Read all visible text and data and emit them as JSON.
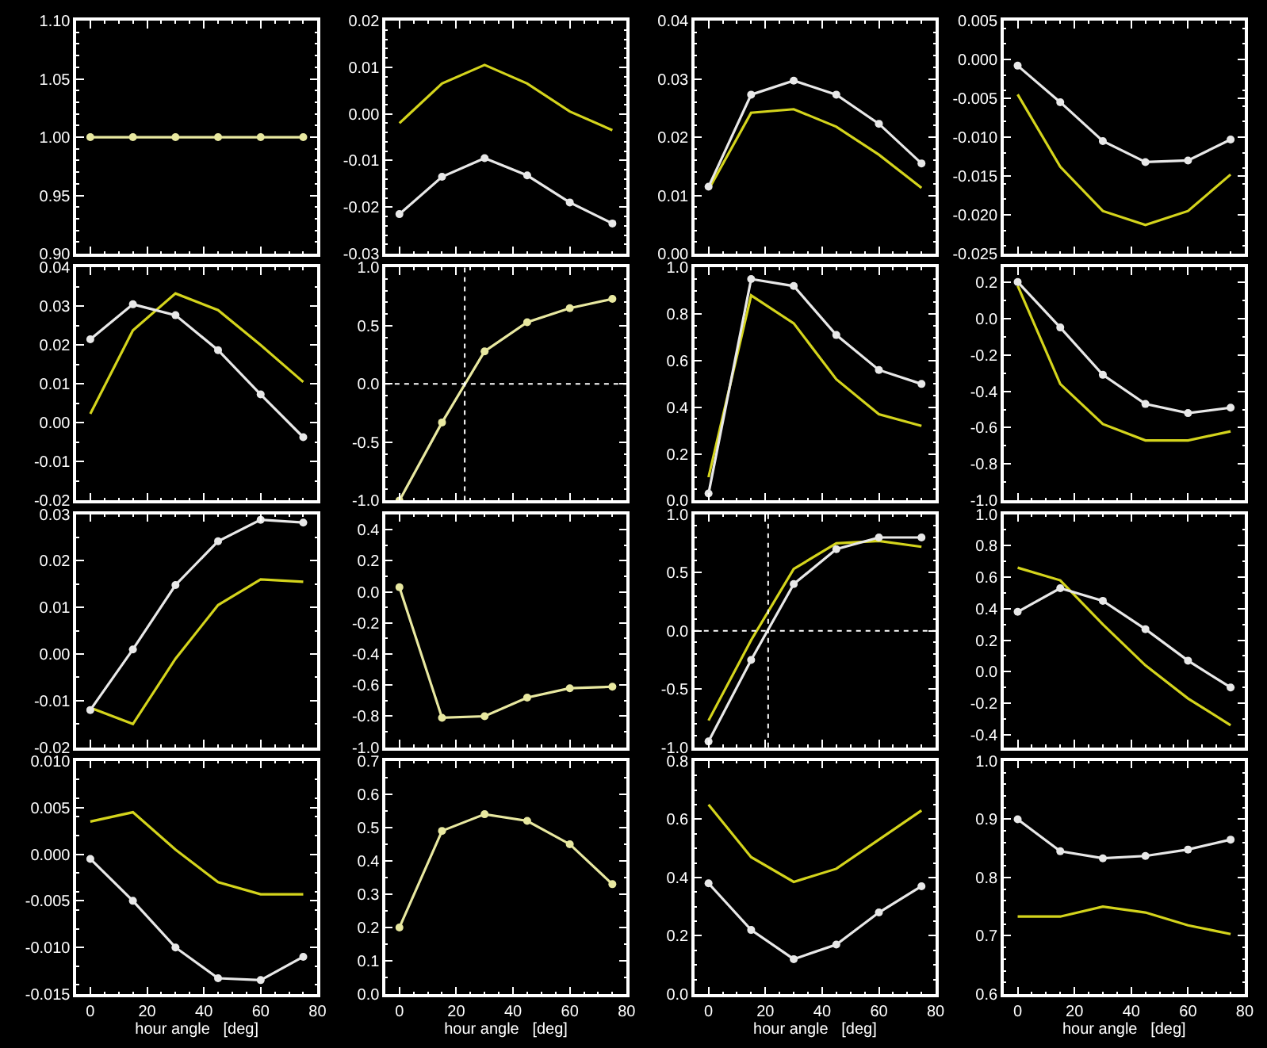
{
  "chart_data": [
    {
      "type": "line",
      "x": [
        0,
        15,
        30,
        45,
        60,
        75
      ],
      "xlim": [
        -5,
        80
      ],
      "xticks": [
        0,
        20,
        40,
        60,
        80
      ],
      "tick_labels": "y",
      "ylim": [
        0.9,
        1.1
      ],
      "yticks": [
        {
          "value": 0.9,
          "label": "0.90"
        },
        {
          "value": 0.95,
          "label": "0.95"
        },
        {
          "value": 1.0,
          "label": "1.00"
        },
        {
          "value": 1.05,
          "label": "1.05"
        },
        {
          "value": 1.1,
          "label": "1.10"
        }
      ],
      "series": [
        {
          "color": "#e8e8a0",
          "marker": "circle",
          "values": [
            1.0,
            1.0,
            1.0,
            1.0,
            1.0,
            1.0
          ]
        }
      ]
    },
    {
      "type": "line",
      "x": [
        0,
        15,
        30,
        45,
        60,
        75
      ],
      "xlim": [
        -5,
        80
      ],
      "xticks": [
        0,
        20,
        40,
        60,
        80
      ],
      "tick_labels": "y",
      "ylim": [
        -0.03,
        0.02
      ],
      "yticks": [
        -0.03,
        -0.02,
        -0.01,
        {
          "value": 0,
          "label": "0.00"
        },
        0.01,
        0.02
      ],
      "series": [
        {
          "color": "#d4d41c",
          "values": [
            -0.002,
            0.0065,
            0.0105,
            0.0065,
            0.0005,
            -0.0035
          ]
        },
        {
          "color": "#e8e8e8",
          "marker": "circle",
          "values": [
            -0.0215,
            -0.0135,
            -0.0095,
            -0.0132,
            -0.019,
            -0.0235
          ]
        }
      ]
    },
    {
      "type": "line",
      "x": [
        0,
        15,
        30,
        45,
        60,
        75
      ],
      "xlim": [
        -5,
        80
      ],
      "xticks": [
        0,
        20,
        40,
        60,
        80
      ],
      "tick_labels": "y",
      "ylim": [
        0,
        0.04
      ],
      "yticks": [
        {
          "value": 0,
          "label": "0.00"
        },
        0.01,
        0.02,
        0.03,
        0.04
      ],
      "series": [
        {
          "color": "#d4d41c",
          "values": [
            0.011,
            0.0242,
            0.0248,
            0.0218,
            0.017,
            0.0113
          ]
        },
        {
          "color": "#e8e8e8",
          "marker": "circle",
          "values": [
            0.0115,
            0.0273,
            0.0297,
            0.0273,
            0.0223,
            0.0155
          ]
        }
      ]
    },
    {
      "type": "line",
      "x": [
        0,
        15,
        30,
        45,
        60,
        75
      ],
      "xlim": [
        -5,
        80
      ],
      "xticks": [
        0,
        20,
        40,
        60,
        80
      ],
      "tick_labels": "y",
      "ylim": [
        -0.025,
        0.005
      ],
      "yticks": [
        -0.025,
        {
          "value": -0.02,
          "label": "-0.020"
        },
        -0.015,
        {
          "value": -0.01,
          "label": "-0.010"
        },
        -0.005,
        {
          "value": 0,
          "label": "0.000"
        },
        0.005
      ],
      "series": [
        {
          "color": "#d4d41c",
          "values": [
            -0.0045,
            -0.0138,
            -0.0195,
            -0.0213,
            -0.0195,
            -0.0148
          ]
        },
        {
          "color": "#e8e8e8",
          "marker": "circle",
          "values": [
            -0.0008,
            -0.0055,
            -0.0105,
            -0.0132,
            -0.013,
            -0.0103
          ]
        }
      ]
    },
    {
      "type": "line",
      "x": [
        0,
        15,
        30,
        45,
        60,
        75
      ],
      "xlim": [
        -5,
        80
      ],
      "xticks": [
        0,
        20,
        40,
        60,
        80
      ],
      "tick_labels": "y",
      "ylim": [
        -0.02,
        0.04
      ],
      "yticks": [
        -0.02,
        -0.01,
        {
          "value": 0,
          "label": "0.00"
        },
        0.01,
        0.02,
        0.03,
        0.04
      ],
      "series": [
        {
          "color": "#d4d41c",
          "values": [
            0.0023,
            0.0238,
            0.0333,
            0.029,
            0.02,
            0.0105
          ]
        },
        {
          "color": "#e8e8e8",
          "marker": "circle",
          "values": [
            0.0215,
            0.0305,
            0.0277,
            0.0187,
            0.0073,
            -0.0037
          ]
        }
      ]
    },
    {
      "type": "line",
      "x": [
        0,
        15,
        30,
        45,
        60,
        75
      ],
      "xlim": [
        -5,
        80
      ],
      "xticks": [
        0,
        20,
        40,
        60,
        80
      ],
      "tick_labels": "y",
      "ylim": [
        -1,
        1
      ],
      "yticks": [
        {
          "value": -1,
          "label": "-1.0"
        },
        -0.5,
        {
          "value": 0,
          "label": "0.0"
        },
        0.5,
        {
          "value": 1,
          "label": "1.0"
        }
      ],
      "ref_lines": [
        {
          "axis": "x",
          "value": 23,
          "line_style": "dotted"
        },
        {
          "axis": "y",
          "value": 0,
          "line_style": "dotted"
        }
      ],
      "series": [
        {
          "color": "#e8e8a0",
          "marker": "circle",
          "values": [
            -1.0,
            -0.33,
            0.28,
            0.53,
            0.65,
            0.73
          ]
        }
      ]
    },
    {
      "type": "line",
      "x": [
        0,
        15,
        30,
        45,
        60,
        75
      ],
      "xlim": [
        -5,
        80
      ],
      "xticks": [
        0,
        20,
        40,
        60,
        80
      ],
      "tick_labels": "y",
      "ylim": [
        0,
        1
      ],
      "yticks": [
        {
          "value": 0,
          "label": "0.0"
        },
        0.2,
        0.4,
        0.6,
        0.8,
        {
          "value": 1,
          "label": "1.0"
        }
      ],
      "series": [
        {
          "color": "#d4d41c",
          "values": [
            0.1,
            0.88,
            0.76,
            0.52,
            0.37,
            0.32
          ]
        },
        {
          "color": "#e8e8e8",
          "marker": "circle",
          "values": [
            0.03,
            0.95,
            0.92,
            0.71,
            0.56,
            0.5
          ]
        }
      ]
    },
    {
      "type": "line",
      "x": [
        0,
        15,
        30,
        45,
        60,
        75
      ],
      "xlim": [
        -5,
        80
      ],
      "xticks": [
        0,
        20,
        40,
        60,
        80
      ],
      "tick_labels": "y",
      "ylim": [
        -1,
        0.28
      ],
      "yticks": [
        {
          "value": -1,
          "label": "-1.0"
        },
        -0.8,
        -0.6,
        -0.4,
        -0.2,
        {
          "value": 0,
          "label": "0.0"
        },
        0.2
      ],
      "series": [
        {
          "color": "#d4d41c",
          "values": [
            0.18,
            -0.36,
            -0.58,
            -0.67,
            -0.67,
            -0.62
          ]
        },
        {
          "color": "#e8e8e8",
          "marker": "circle",
          "values": [
            0.2,
            -0.05,
            -0.31,
            -0.47,
            -0.52,
            -0.49
          ]
        }
      ]
    },
    {
      "type": "line",
      "x": [
        0,
        15,
        30,
        45,
        60,
        75
      ],
      "xlim": [
        -5,
        80
      ],
      "xticks": [
        0,
        20,
        40,
        60,
        80
      ],
      "tick_labels": "y",
      "ylim": [
        -0.02,
        0.03
      ],
      "yticks": [
        -0.02,
        -0.01,
        {
          "value": 0,
          "label": "0.00"
        },
        0.01,
        0.02,
        0.03
      ],
      "series": [
        {
          "color": "#d4d41c",
          "values": [
            -0.0115,
            -0.015,
            -0.001,
            0.0105,
            0.016,
            0.0155
          ]
        },
        {
          "color": "#e8e8e8",
          "marker": "circle",
          "values": [
            -0.012,
            0.001,
            0.0148,
            0.0242,
            0.0288,
            0.0282
          ]
        }
      ]
    },
    {
      "type": "line",
      "x": [
        0,
        15,
        30,
        45,
        60,
        75
      ],
      "xlim": [
        -5,
        80
      ],
      "xticks": [
        0,
        20,
        40,
        60,
        80
      ],
      "tick_labels": "y",
      "ylim": [
        -1,
        0.5
      ],
      "yticks": [
        {
          "value": -1,
          "label": "-1.0"
        },
        -0.8,
        -0.6,
        -0.4,
        -0.2,
        {
          "value": 0,
          "label": "0.0"
        },
        0.2,
        0.4
      ],
      "series": [
        {
          "color": "#e8e8a0",
          "marker": "circle",
          "values": [
            0.03,
            -0.81,
            -0.8,
            -0.68,
            -0.62,
            -0.61
          ]
        }
      ]
    },
    {
      "type": "line",
      "x": [
        0,
        15,
        30,
        45,
        60,
        75
      ],
      "xlim": [
        -5,
        80
      ],
      "xticks": [
        0,
        20,
        40,
        60,
        80
      ],
      "tick_labels": "y",
      "ylim": [
        -1,
        1
      ],
      "yticks": [
        {
          "value": -1,
          "label": "-1.0"
        },
        -0.5,
        {
          "value": 0,
          "label": "0.0"
        },
        0.5,
        {
          "value": 1,
          "label": "1.0"
        }
      ],
      "ref_lines": [
        {
          "axis": "x",
          "value": 21,
          "line_style": "dotted"
        },
        {
          "axis": "y",
          "value": 0,
          "line_style": "dotted"
        }
      ],
      "series": [
        {
          "color": "#d4d41c",
          "values": [
            -0.77,
            -0.08,
            0.53,
            0.75,
            0.77,
            0.72
          ]
        },
        {
          "color": "#e8e8e8",
          "marker": "circle",
          "values": [
            -0.95,
            -0.25,
            0.4,
            0.7,
            0.8,
            0.8
          ]
        }
      ]
    },
    {
      "type": "line",
      "x": [
        0,
        15,
        30,
        45,
        60,
        75
      ],
      "xlim": [
        -5,
        80
      ],
      "xticks": [
        0,
        20,
        40,
        60,
        80
      ],
      "tick_labels": "y",
      "ylim": [
        -0.48,
        1
      ],
      "yticks": [
        -0.4,
        -0.2,
        {
          "value": 0,
          "label": "0.0"
        },
        0.2,
        0.4,
        0.6,
        0.8,
        {
          "value": 1,
          "label": "1.0"
        }
      ],
      "series": [
        {
          "color": "#d4d41c",
          "values": [
            0.66,
            0.58,
            0.3,
            0.04,
            -0.17,
            -0.34
          ]
        },
        {
          "color": "#e8e8e8",
          "marker": "circle",
          "values": [
            0.38,
            0.53,
            0.45,
            0.27,
            0.07,
            -0.1
          ]
        }
      ]
    },
    {
      "type": "line",
      "x": [
        0,
        15,
        30,
        45,
        60,
        75
      ],
      "xlim": [
        -5,
        80
      ],
      "xticks": [
        0,
        20,
        40,
        60,
        80
      ],
      "xlabel": "hour angle   [deg]",
      "ylim": [
        -0.015,
        0.01
      ],
      "yticks": [
        -0.015,
        {
          "value": -0.01,
          "label": "-0.010"
        },
        -0.005,
        {
          "value": 0,
          "label": "0.000"
        },
        0.005,
        {
          "value": 0.01,
          "label": "0.010"
        }
      ],
      "series": [
        {
          "color": "#d4d41c",
          "values": [
            0.0035,
            0.0045,
            0.0005,
            -0.003,
            -0.0043,
            -0.0043
          ]
        },
        {
          "color": "#e8e8e8",
          "marker": "circle",
          "values": [
            -0.0005,
            -0.005,
            -0.01,
            -0.0133,
            -0.0135,
            -0.011
          ]
        }
      ]
    },
    {
      "type": "line",
      "x": [
        0,
        15,
        30,
        45,
        60,
        75
      ],
      "xlim": [
        -5,
        80
      ],
      "xticks": [
        0,
        20,
        40,
        60,
        80
      ],
      "xlabel": "hour angle   [deg]",
      "ylim": [
        0,
        0.7
      ],
      "yticks": [
        {
          "value": 0,
          "label": "0.0"
        },
        0.1,
        0.2,
        0.3,
        0.4,
        0.5,
        0.6,
        0.7
      ],
      "series": [
        {
          "color": "#e8e8a0",
          "marker": "circle",
          "values": [
            0.2,
            0.49,
            0.54,
            0.52,
            0.45,
            0.33
          ]
        }
      ]
    },
    {
      "type": "line",
      "x": [
        0,
        15,
        30,
        45,
        60,
        75
      ],
      "xlim": [
        -5,
        80
      ],
      "xticks": [
        0,
        20,
        40,
        60,
        80
      ],
      "xlabel": "hour angle   [deg]",
      "ylim": [
        0,
        0.8
      ],
      "yticks": [
        {
          "value": 0,
          "label": "0.0"
        },
        0.2,
        0.4,
        0.6,
        0.8
      ],
      "series": [
        {
          "color": "#d4d41c",
          "values": [
            0.65,
            0.47,
            0.385,
            0.43,
            0.53,
            0.63
          ]
        },
        {
          "color": "#e8e8e8",
          "marker": "circle",
          "values": [
            0.38,
            0.22,
            0.12,
            0.17,
            0.28,
            0.37
          ]
        }
      ]
    },
    {
      "type": "line",
      "x": [
        0,
        15,
        30,
        45,
        60,
        75
      ],
      "xlim": [
        -5,
        80
      ],
      "xticks": [
        0,
        20,
        40,
        60,
        80
      ],
      "xlabel": "hour angle   [deg]",
      "ylim": [
        0.6,
        1
      ],
      "yticks": [
        0.6,
        0.7,
        0.8,
        0.9,
        {
          "value": 1,
          "label": "1.0"
        }
      ],
      "series": [
        {
          "color": "#d4d41c",
          "values": [
            0.733,
            0.733,
            0.75,
            0.74,
            0.718,
            0.703
          ]
        },
        {
          "color": "#e8e8e8",
          "marker": "circle",
          "values": [
            0.9,
            0.845,
            0.833,
            0.837,
            0.848,
            0.865
          ]
        }
      ]
    }
  ]
}
